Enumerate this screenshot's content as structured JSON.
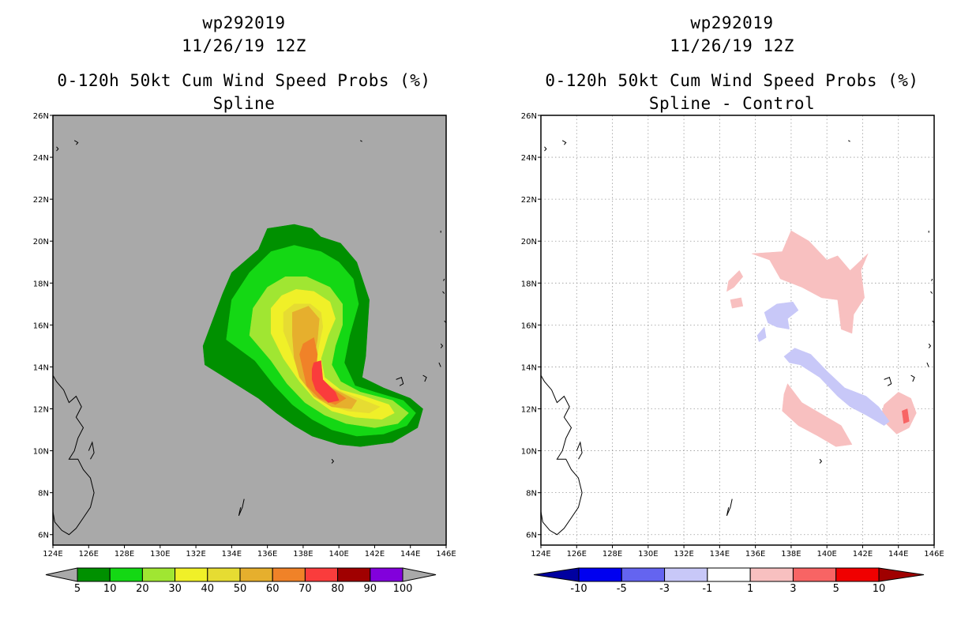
{
  "chart_data": [
    {
      "type": "heatmap",
      "storm_id": "wp292019",
      "datetime": "11/26/19 12Z",
      "title": "0-120h 50kt Cum Wind Speed Probs (%)",
      "subtitle": "Spline",
      "xlim": [
        124,
        146
      ],
      "ylim": [
        5.5,
        26
      ],
      "x_tick_labels": [
        "124E",
        "126E",
        "128E",
        "130E",
        "132E",
        "134E",
        "136E",
        "138E",
        "140E",
        "142E",
        "144E",
        "146E"
      ],
      "y_tick_labels": [
        "6N",
        "8N",
        "10N",
        "12N",
        "14N",
        "16N",
        "18N",
        "20N",
        "22N",
        "24N",
        "26N"
      ],
      "colorbar": {
        "levels": [
          "5",
          "10",
          "20",
          "30",
          "40",
          "50",
          "60",
          "70",
          "80",
          "90",
          "100"
        ],
        "colors": [
          "#009000",
          "#14d814",
          "#a0e632",
          "#f0f028",
          "#e6dc32",
          "#e6af2d",
          "#f08228",
          "#fa3c3c",
          "#a00000",
          "#8200dc"
        ]
      },
      "probability_contours": [
        {
          "level": 5,
          "color": "#009000",
          "polygon": [
            [
              132.4,
              15
            ],
            [
              133.5,
              17.5
            ],
            [
              134,
              18.5
            ],
            [
              135.5,
              19.6
            ],
            [
              136,
              20.6
            ],
            [
              137.5,
              20.8
            ],
            [
              138.5,
              20.6
            ],
            [
              139,
              20.2
            ],
            [
              140.1,
              19.9
            ],
            [
              141,
              19
            ],
            [
              141.7,
              17.2
            ],
            [
              141.5,
              14.5
            ],
            [
              141.3,
              13.5
            ],
            [
              142.5,
              13
            ],
            [
              144,
              12.5
            ],
            [
              144.7,
              12
            ],
            [
              144.4,
              11.1
            ],
            [
              143,
              10.4
            ],
            [
              141.2,
              10.2
            ],
            [
              140,
              10.3
            ],
            [
              138.5,
              10.7
            ],
            [
              137.5,
              11.2
            ],
            [
              136.5,
              11.8
            ],
            [
              135.5,
              12.5
            ],
            [
              134,
              13.3
            ],
            [
              132.5,
              14.1
            ]
          ]
        },
        {
          "level": 10,
          "color": "#14d814",
          "polygon": [
            [
              133.7,
              15.3
            ],
            [
              134,
              17.2
            ],
            [
              135,
              18.5
            ],
            [
              136.2,
              19.5
            ],
            [
              137.5,
              19.8
            ],
            [
              139,
              19.5
            ],
            [
              140,
              19
            ],
            [
              140.8,
              18.2
            ],
            [
              141.1,
              17
            ],
            [
              140.6,
              15.5
            ],
            [
              140.3,
              14.2
            ],
            [
              140.9,
              13.1
            ],
            [
              142,
              12.8
            ],
            [
              143.6,
              12.4
            ],
            [
              144.3,
              11.8
            ],
            [
              143.8,
              11.2
            ],
            [
              142.5,
              10.8
            ],
            [
              141,
              10.7
            ],
            [
              139.6,
              11
            ],
            [
              138.5,
              11.5
            ],
            [
              137.4,
              12.2
            ],
            [
              136.4,
              13.1
            ],
            [
              135.3,
              14.3
            ]
          ]
        },
        {
          "level": 20,
          "color": "#a0e632",
          "polygon": [
            [
              135,
              15.5
            ],
            [
              135.2,
              16.8
            ],
            [
              136,
              17.8
            ],
            [
              137,
              18.3
            ],
            [
              138.2,
              18.3
            ],
            [
              139.5,
              17.8
            ],
            [
              140.2,
              17
            ],
            [
              140.2,
              16
            ],
            [
              139.8,
              15
            ],
            [
              139.6,
              14.1
            ],
            [
              140.1,
              13.3
            ],
            [
              141.2,
              12.8
            ],
            [
              143,
              12.4
            ],
            [
              143.9,
              11.8
            ],
            [
              143.3,
              11.3
            ],
            [
              142,
              11.1
            ],
            [
              140.4,
              11.3
            ],
            [
              139.2,
              11.7
            ],
            [
              138.1,
              12.3
            ],
            [
              137.1,
              13.2
            ],
            [
              136.2,
              14.3
            ]
          ]
        },
        {
          "level": 30,
          "color": "#f0f028",
          "polygon": [
            [
              136.2,
              15.6
            ],
            [
              136.2,
              16.8
            ],
            [
              136.8,
              17.4
            ],
            [
              137.6,
              17.7
            ],
            [
              138.6,
              17.6
            ],
            [
              139.5,
              17.1
            ],
            [
              139.8,
              16.3
            ],
            [
              139.4,
              15.5
            ],
            [
              139,
              14.4
            ],
            [
              139.2,
              13.5
            ],
            [
              140.1,
              12.9
            ],
            [
              141.4,
              12.6
            ],
            [
              142.8,
              12.2
            ],
            [
              143.1,
              11.8
            ],
            [
              142.4,
              11.5
            ],
            [
              140.9,
              11.6
            ],
            [
              139.6,
              11.9
            ],
            [
              138.6,
              12.5
            ],
            [
              137.8,
              13.3
            ],
            [
              136.9,
              14.4
            ]
          ]
        },
        {
          "level": 40,
          "color": "#e6dc32",
          "polygon": [
            [
              136.9,
              15.7
            ],
            [
              136.9,
              16.6
            ],
            [
              137.5,
              17
            ],
            [
              138.4,
              17
            ],
            [
              139,
              16.6
            ],
            [
              139.1,
              15.9
            ],
            [
              138.9,
              15.1
            ],
            [
              138.7,
              14.2
            ],
            [
              139,
              13.4
            ],
            [
              139.9,
              12.9
            ],
            [
              141.4,
              12.4
            ],
            [
              142.3,
              12.1
            ],
            [
              141.7,
              11.8
            ],
            [
              140.5,
              11.9
            ],
            [
              139.4,
              12.2
            ],
            [
              138.5,
              12.8
            ],
            [
              137.8,
              13.7
            ]
          ]
        },
        {
          "level": 50,
          "color": "#e6af2d",
          "polygon": [
            [
              137.4,
              15.5
            ],
            [
              137.4,
              16.6
            ],
            [
              138.3,
              16.9
            ],
            [
              138.9,
              16.3
            ],
            [
              138.8,
              15.3
            ],
            [
              138.6,
              14.4
            ],
            [
              138.8,
              13.5
            ],
            [
              139.6,
              13
            ],
            [
              141,
              12.4
            ],
            [
              140.7,
              12
            ],
            [
              139.6,
              12.1
            ],
            [
              138.6,
              12.6
            ],
            [
              137.8,
              13.5
            ],
            [
              137.5,
              14.4
            ]
          ]
        },
        {
          "level": 60,
          "color": "#f08228",
          "polygon": [
            [
              137.8,
              14.6
            ],
            [
              138,
              15.1
            ],
            [
              138.6,
              15.4
            ],
            [
              138.8,
              14.6
            ],
            [
              138.7,
              13.8
            ],
            [
              139.2,
              13.2
            ],
            [
              140.4,
              12.5
            ],
            [
              139.8,
              12.2
            ],
            [
              138.9,
              12.5
            ],
            [
              138.2,
              13.1
            ]
          ]
        },
        {
          "level": 70,
          "color": "#fa3c3c",
          "polygon": [
            [
              138.5,
              13.9
            ],
            [
              138.6,
              14.2
            ],
            [
              139,
              14.3
            ],
            [
              139.1,
              13.4
            ],
            [
              139.8,
              12.8
            ],
            [
              140,
              12.4
            ],
            [
              139.4,
              12.3
            ],
            [
              138.7,
              12.9
            ],
            [
              138.5,
              13.4
            ]
          ]
        }
      ]
    },
    {
      "type": "heatmap",
      "storm_id": "wp292019",
      "datetime": "11/26/19 12Z",
      "title": "0-120h 50kt Cum Wind Speed Probs (%)",
      "subtitle": "Spline - Control",
      "xlim": [
        124,
        146
      ],
      "ylim": [
        5.5,
        26
      ],
      "x_tick_labels": [
        "124E",
        "126E",
        "128E",
        "130E",
        "132E",
        "134E",
        "136E",
        "138E",
        "140E",
        "142E",
        "144E",
        "146E"
      ],
      "y_tick_labels": [
        "6N",
        "8N",
        "10N",
        "12N",
        "14N",
        "16N",
        "18N",
        "20N",
        "22N",
        "24N",
        "26N"
      ],
      "grid": true,
      "colorbar": {
        "levels": [
          "-10",
          "-5",
          "-3",
          "-1",
          "1",
          "3",
          "5",
          "10"
        ],
        "colors": [
          "#0000a0",
          "#0000f0",
          "#6464f0",
          "#c8c8f8",
          "#ffffff",
          "#f8c0c0",
          "#f86464",
          "#f00000",
          "#a00000"
        ]
      },
      "difference_contours": [
        {
          "level": 1,
          "color": "#f8c0c0",
          "polygon": [
            [
              135.8,
              19.4
            ],
            [
              137.5,
              19.5
            ],
            [
              138,
              20.5
            ],
            [
              139,
              20
            ],
            [
              140,
              19.1
            ],
            [
              140.6,
              19.3
            ],
            [
              141.3,
              18.6
            ],
            [
              142.3,
              19.4
            ],
            [
              141.9,
              18.6
            ],
            [
              142.1,
              17.3
            ],
            [
              141.5,
              16.5
            ],
            [
              141.4,
              15.6
            ],
            [
              140.8,
              15.8
            ],
            [
              140.6,
              17.2
            ],
            [
              139.7,
              17.3
            ],
            [
              138.6,
              17.8
            ],
            [
              137.4,
              18.2
            ],
            [
              136.8,
              19.1
            ]
          ]
        },
        {
          "level": 1,
          "color": "#f8c0c0",
          "polygon": [
            [
              134.5,
              18.1
            ],
            [
              135.1,
              18.6
            ],
            [
              135.3,
              18.3
            ],
            [
              134.8,
              17.8
            ],
            [
              134.4,
              17.6
            ]
          ]
        },
        {
          "level": 1,
          "color": "#f8c0c0",
          "polygon": [
            [
              134.6,
              17.2
            ],
            [
              135.2,
              17.3
            ],
            [
              135.3,
              16.9
            ],
            [
              134.7,
              16.8
            ]
          ]
        },
        {
          "level": 1,
          "color": "#f8c0c0",
          "polygon": [
            [
              137.8,
              13.2
            ],
            [
              138.6,
              12.3
            ],
            [
              139.6,
              11.8
            ],
            [
              140.8,
              11.2
            ],
            [
              141.4,
              10.3
            ],
            [
              140.5,
              10.2
            ],
            [
              139.5,
              10.7
            ],
            [
              138.4,
              11.2
            ],
            [
              137.5,
              11.9
            ],
            [
              137.6,
              12.7
            ]
          ]
        },
        {
          "level": 1,
          "color": "#f8c0c0",
          "polygon": [
            [
              143.2,
              12.2
            ],
            [
              144,
              12.8
            ],
            [
              144.7,
              12.5
            ],
            [
              145,
              11.8
            ],
            [
              144.6,
              11.1
            ],
            [
              143.9,
              10.8
            ],
            [
              143.3,
              11.3
            ],
            [
              143.1,
              11.9
            ]
          ]
        },
        {
          "level": -1,
          "color": "#c8c8f8",
          "polygon": [
            [
              136.5,
              16.6
            ],
            [
              137.2,
              17
            ],
            [
              138.1,
              17.1
            ],
            [
              138.4,
              16.7
            ],
            [
              137.8,
              16.3
            ],
            [
              137.9,
              15.8
            ],
            [
              137.2,
              15.9
            ],
            [
              136.7,
              16.1
            ]
          ]
        },
        {
          "level": -1,
          "color": "#c8c8f8",
          "polygon": [
            [
              136.1,
              15.5
            ],
            [
              136.5,
              15.9
            ],
            [
              136.6,
              15.4
            ],
            [
              136.2,
              15.2
            ]
          ]
        },
        {
          "level": -1,
          "color": "#c8c8f8",
          "polygon": [
            [
              137.6,
              14.5
            ],
            [
              138.2,
              14.9
            ],
            [
              139.1,
              14.6
            ],
            [
              140,
              13.8
            ],
            [
              141,
              13
            ],
            [
              142.2,
              12.6
            ],
            [
              142.9,
              12.1
            ],
            [
              143.5,
              11.4
            ],
            [
              143.2,
              11.2
            ],
            [
              142.2,
              11.7
            ],
            [
              141.3,
              12.1
            ],
            [
              140.6,
              12.6
            ],
            [
              139.6,
              13.5
            ],
            [
              138.5,
              14.1
            ],
            [
              137.9,
              14.2
            ]
          ]
        },
        {
          "level": 3,
          "color": "#f86464",
          "polygon": [
            [
              144.2,
              11.9
            ],
            [
              144.5,
              12
            ],
            [
              144.6,
              11.4
            ],
            [
              144.3,
              11.3
            ]
          ]
        }
      ]
    }
  ]
}
